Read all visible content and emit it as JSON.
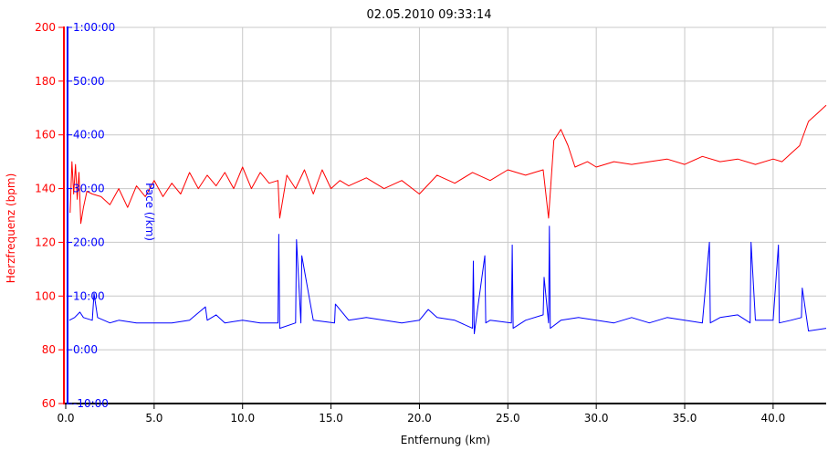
{
  "chart_data": {
    "type": "line",
    "title": "02.05.2010 09:33:14",
    "xlabel": "Entfernung (km)",
    "xlim": [
      0,
      43
    ],
    "x_ticks": [
      "0.0",
      "5.0",
      "10.0",
      "15.0",
      "20.0",
      "25.0",
      "30.0",
      "35.0",
      "40.0"
    ],
    "grid": true,
    "left_axis": {
      "label": "Herzfrequenz (bpm)",
      "color": "#ff0000",
      "ylim": [
        60,
        200
      ],
      "ticks": [
        "60",
        "80",
        "100",
        "120",
        "140",
        "160",
        "180",
        "200"
      ]
    },
    "right_axis": {
      "label": "Pace (/km)",
      "color": "#0000ff",
      "ticks": [
        "-10:00",
        "0:00",
        "10:00",
        "20:00",
        "30:00",
        "40:00",
        "50:00",
        "1:00:00"
      ]
    },
    "series": [
      {
        "name": "Herzfrequenz (bpm)",
        "axis": "left",
        "color": "#ff0000",
        "x": [
          0.25,
          0.35,
          0.45,
          0.55,
          0.65,
          0.75,
          0.85,
          1.0,
          1.2,
          1.5,
          2.0,
          2.5,
          3.0,
          3.5,
          4.0,
          4.5,
          5.0,
          5.5,
          6.0,
          6.5,
          7.0,
          7.5,
          8.0,
          8.5,
          9.0,
          9.5,
          10.0,
          10.5,
          11.0,
          11.5,
          12.0,
          12.1,
          12.5,
          13.0,
          13.5,
          14.0,
          14.5,
          15.0,
          15.5,
          16.0,
          17.0,
          18.0,
          19.0,
          20.0,
          21.0,
          22.0,
          23.0,
          24.0,
          25.0,
          26.0,
          26.5,
          27.0,
          27.3,
          27.6,
          28.0,
          28.4,
          28.8,
          29.5,
          30.0,
          31.0,
          32.0,
          33.0,
          34.0,
          35.0,
          36.0,
          37.0,
          38.0,
          39.0,
          40.0,
          40.5,
          41.0,
          41.5,
          42.0,
          42.5,
          43.0
        ],
        "y": [
          131,
          150,
          138,
          149,
          136,
          146,
          127,
          133,
          139,
          138,
          137,
          134,
          140,
          133,
          141,
          137,
          143,
          137,
          142,
          138,
          146,
          140,
          145,
          141,
          146,
          140,
          148,
          140,
          146,
          142,
          143,
          129,
          145,
          140,
          147,
          138,
          147,
          140,
          143,
          141,
          144,
          140,
          143,
          138,
          145,
          142,
          146,
          143,
          147,
          145,
          146,
          147,
          129,
          158,
          162,
          156,
          148,
          150,
          148,
          150,
          149,
          150,
          151,
          149,
          152,
          150,
          151,
          149,
          151,
          150,
          153,
          156,
          165,
          168,
          171
        ]
      },
      {
        "name": "Pace (/km)",
        "axis": "right",
        "color": "#0000ff",
        "x": [
          0.2,
          0.5,
          0.8,
          1.0,
          1.5,
          1.6,
          1.8,
          2.5,
          3.0,
          4.0,
          5.0,
          6.0,
          7.0,
          7.9,
          8.0,
          8.5,
          9.0,
          10.0,
          11.0,
          12.0,
          12.05,
          12.1,
          13.0,
          13.05,
          13.3,
          13.35,
          14.0,
          15.2,
          15.25,
          16.0,
          17.0,
          18.0,
          19.0,
          20.0,
          20.5,
          21.0,
          22.0,
          23.0,
          23.05,
          23.1,
          23.7,
          23.75,
          24.0,
          25.2,
          25.25,
          25.3,
          26.0,
          27.0,
          27.05,
          27.3,
          27.35,
          27.4,
          28.0,
          29.0,
          30.0,
          31.0,
          32.0,
          33.0,
          34.0,
          35.0,
          36.0,
          36.4,
          36.45,
          37.0,
          38.0,
          38.7,
          38.75,
          39.0,
          40.0,
          40.3,
          40.35,
          41.0,
          41.6,
          41.65,
          42.0,
          43.0
        ],
        "y": [
          91,
          92,
          94,
          92,
          91,
          101,
          92,
          90,
          91,
          90,
          90,
          90,
          91,
          96,
          91,
          93,
          90,
          91,
          90,
          90,
          123,
          88,
          90,
          121,
          90,
          115,
          91,
          90,
          97,
          91,
          92,
          91,
          90,
          91,
          95,
          92,
          91,
          88,
          113,
          86,
          115,
          90,
          91,
          90,
          119,
          88,
          91,
          93,
          107,
          90,
          126,
          88,
          91,
          92,
          91,
          90,
          92,
          90,
          92,
          91,
          90,
          120,
          90,
          92,
          93,
          90,
          120,
          91,
          91,
          119,
          90,
          91,
          92,
          103,
          87,
          88
        ]
      }
    ]
  }
}
